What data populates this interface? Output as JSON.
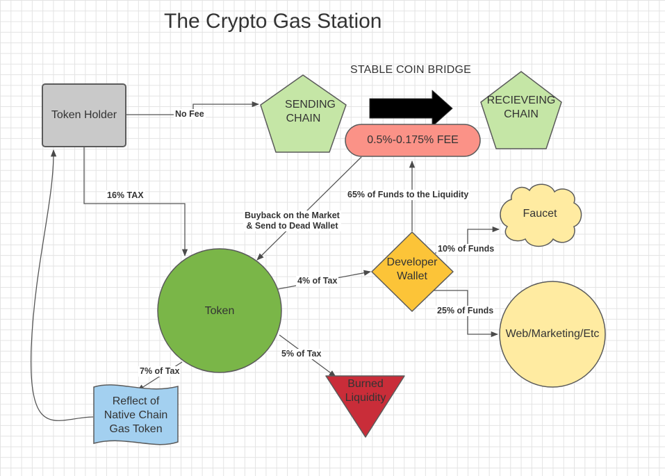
{
  "title": "The Crypto Gas Station",
  "bridge_label": "STABLE COIN BRIDGE",
  "nodes": {
    "token_holder": "Token Holder",
    "sending_chain_l1": "SENDING",
    "sending_chain_l2": "CHAIN",
    "receiving_chain_l1": "RECIEVEING",
    "receiving_chain_l2": "CHAIN",
    "fee": "0.5%-0.175% FEE",
    "faucet": "Faucet",
    "token": "Token",
    "developer_wallet_l1": "Developer",
    "developer_wallet_l2": "Wallet",
    "web_marketing": "Web/Marketing/Etc",
    "burned_l1": "Burned",
    "burned_l2": "Liquidity",
    "reflect_l1": "Reflect of",
    "reflect_l2": "Native Chain",
    "reflect_l3": "Gas Token"
  },
  "edges": {
    "no_fee": "No Fee",
    "tax_16": "16% TAX",
    "buyback_l1": "Buyback on the Market",
    "buyback_l2": "& Send to Dead Wallet",
    "liquidity_65": "65% of Funds to the Liquidity",
    "funds_10": "10% of Funds",
    "tax_4": "4% of Tax",
    "funds_25": "25% of Funds",
    "tax_5": "5% of Tax",
    "tax_7": "7% of Tax"
  },
  "colors": {
    "token_holder": "#c9c9c9",
    "chain": "#c5e6a6",
    "fee": "#fb9287",
    "faucet": "#ffeba1",
    "token": "#7ab648",
    "developer_wallet": "#fcc438",
    "web_marketing": "#ffeba1",
    "burned": "#c92d39",
    "reflect": "#a3d0f0",
    "bridge_arrow": "#000000"
  }
}
